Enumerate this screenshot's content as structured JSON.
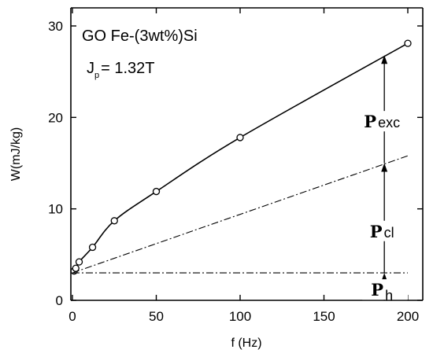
{
  "chart_data": {
    "type": "line",
    "title": "GO Fe-(3wt%)Si",
    "subtitle_main": "J",
    "subtitle_sub": "p",
    "subtitle_value": "= 1.32T",
    "xlabel": "f (Hz)",
    "ylabel": "W(mJ/kg)",
    "xlim": [
      0,
      200
    ],
    "ylim": [
      0,
      30
    ],
    "xticks": [
      0,
      50,
      100,
      150,
      200
    ],
    "yticks": [
      0,
      10,
      20,
      30
    ],
    "grid": false,
    "series": [
      {
        "style": "solid-with-circles",
        "x": [
          1,
          2,
          4,
          12,
          25,
          50,
          100,
          200
        ],
        "y": [
          3.2,
          3.5,
          4.2,
          5.8,
          8.7,
          11.9,
          17.8,
          28.1
        ]
      },
      {
        "style": "dash-dot",
        "x": [
          0,
          200
        ],
        "y": [
          3.0,
          15.8
        ]
      },
      {
        "style": "dash-dot",
        "x": [
          0,
          200
        ],
        "y": [
          3.0,
          3.0
        ]
      }
    ],
    "annotations": [
      {
        "main": "P",
        "sub": "exc",
        "x": 186
      },
      {
        "main": "P",
        "sub": "cl",
        "x": 186
      },
      {
        "main": "P",
        "sub": "h",
        "x": 186
      }
    ],
    "arrow_x": 186,
    "arrow_levels": [
      0,
      3.0,
      15.0,
      26.8
    ]
  }
}
